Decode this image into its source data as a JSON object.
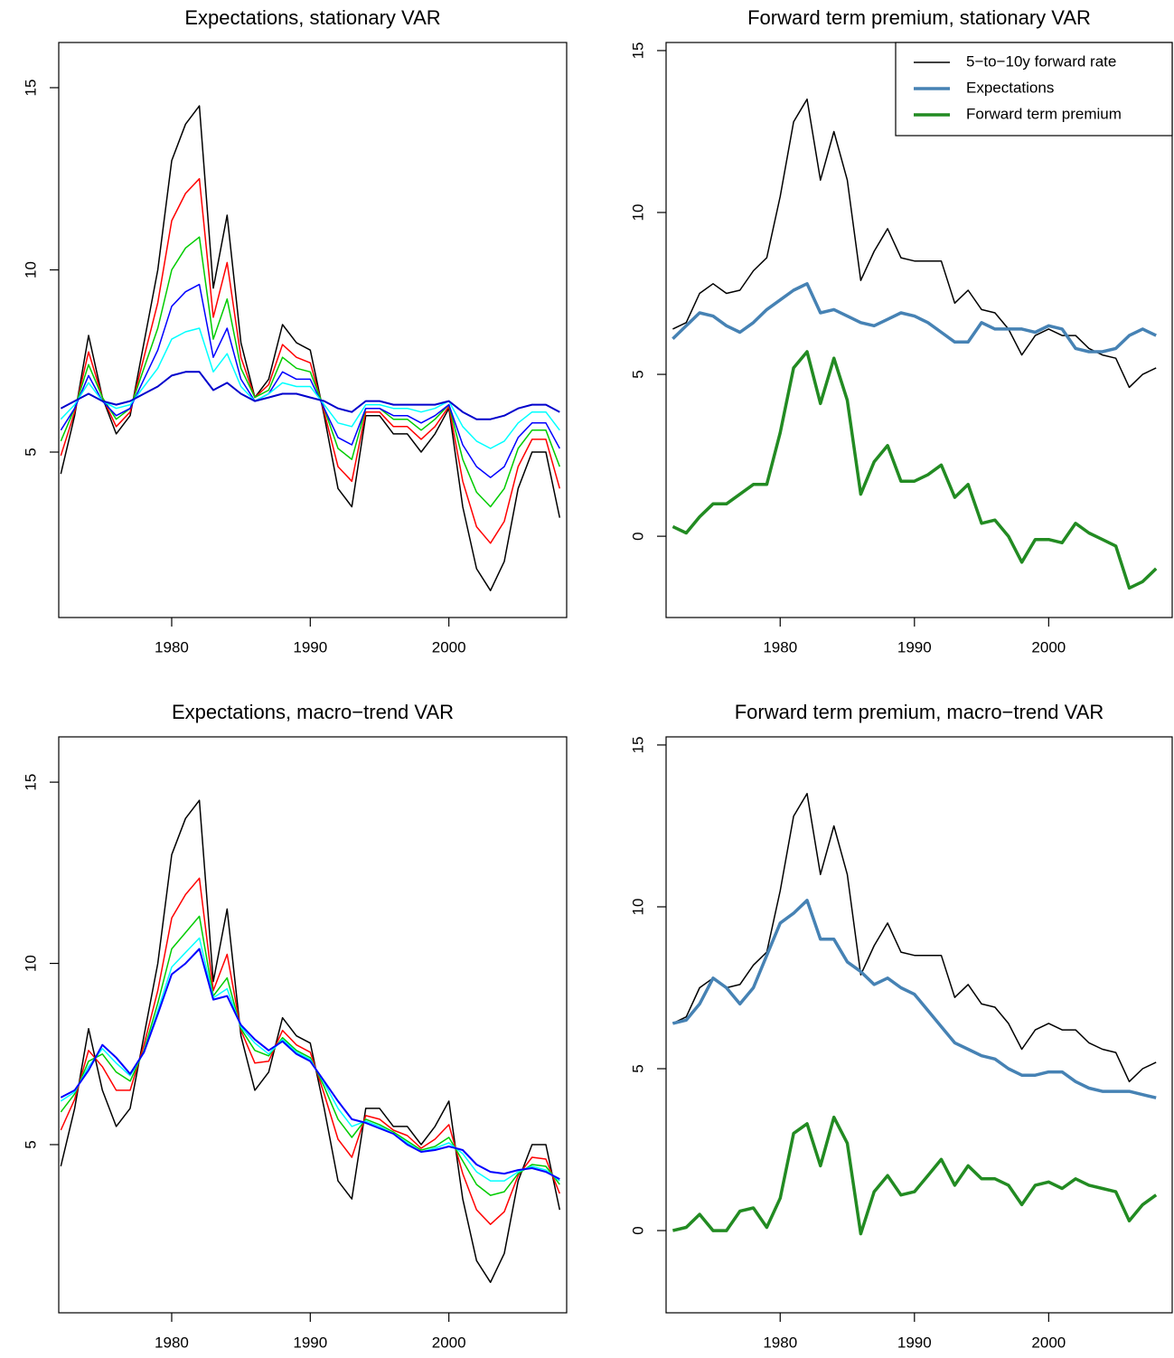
{
  "chart_data": [
    {
      "type": "line",
      "title": "Expectations, stationary VAR",
      "x": [
        1972,
        1973,
        1974,
        1975,
        1976,
        1977,
        1978,
        1979,
        1980,
        1981,
        1982,
        1983,
        1984,
        1985,
        1986,
        1987,
        1988,
        1989,
        1990,
        1991,
        1992,
        1993,
        1994,
        1995,
        1996,
        1997,
        1998,
        1999,
        2000,
        2001,
        2002,
        2003,
        2004,
        2005,
        2006,
        2007,
        2008
      ],
      "xlim": [
        1971.85,
        2008.5
      ],
      "xticks": [
        1980,
        1990,
        2000
      ],
      "ylim": [
        0.46,
        16.24
      ],
      "yticks": [
        5,
        10,
        15
      ],
      "series": [
        {
          "color": "#000000",
          "line_width": 1.5,
          "values": [
            4.4,
            6.0,
            8.2,
            6.5,
            5.5,
            6.0,
            8.0,
            10.0,
            13.0,
            14.0,
            14.5,
            9.5,
            11.5,
            8.0,
            6.5,
            7.0,
            8.5,
            8.0,
            7.8,
            6.0,
            4.0,
            3.5,
            6.0,
            6.0,
            5.5,
            5.5,
            5.0,
            5.5,
            6.2,
            3.5,
            1.8,
            1.2,
            2.0,
            4.0,
            5.0,
            5.0,
            3.2
          ]
        },
        {
          "color": "#ff0000",
          "line_width": 1.5,
          "values": [
            4.9,
            6.1,
            7.75,
            6.5,
            5.7,
            6.1,
            7.6,
            9.1,
            11.35,
            12.1,
            12.5,
            8.7,
            10.2,
            7.6,
            6.5,
            6.85,
            7.95,
            7.6,
            7.45,
            6.1,
            4.6,
            4.2,
            6.1,
            6.1,
            5.7,
            5.7,
            5.35,
            5.7,
            6.25,
            4.2,
            2.95,
            2.5,
            3.1,
            4.6,
            5.35,
            5.35,
            4.0
          ]
        },
        {
          "color": "#00cc00",
          "line_width": 1.5,
          "values": [
            5.3,
            6.2,
            7.4,
            6.5,
            5.9,
            6.2,
            7.3,
            8.4,
            10.0,
            10.6,
            10.9,
            8.1,
            9.2,
            7.3,
            6.5,
            6.7,
            7.6,
            7.3,
            7.2,
            6.2,
            5.1,
            4.8,
            6.2,
            6.2,
            5.9,
            5.9,
            5.6,
            5.9,
            6.3,
            4.8,
            3.9,
            3.5,
            4.0,
            5.1,
            5.6,
            5.6,
            4.6
          ]
        },
        {
          "color": "#0000ff",
          "line_width": 1.5,
          "values": [
            5.6,
            6.2,
            7.1,
            6.4,
            6.0,
            6.2,
            7.0,
            7.8,
            9.0,
            9.4,
            9.6,
            7.6,
            8.4,
            7.0,
            6.4,
            6.6,
            7.2,
            7.0,
            7.0,
            6.2,
            5.4,
            5.2,
            6.2,
            6.2,
            6.0,
            6.0,
            5.8,
            6.0,
            6.3,
            5.2,
            4.6,
            4.3,
            4.6,
            5.4,
            5.8,
            5.8,
            5.1
          ]
        },
        {
          "color": "#00ffff",
          "line_width": 1.5,
          "values": [
            5.9,
            6.3,
            6.9,
            6.4,
            6.2,
            6.3,
            6.8,
            7.3,
            8.1,
            8.3,
            8.4,
            7.2,
            7.7,
            6.8,
            6.4,
            6.6,
            6.9,
            6.8,
            6.8,
            6.3,
            5.8,
            5.7,
            6.3,
            6.3,
            6.2,
            6.2,
            6.1,
            6.2,
            6.4,
            5.7,
            5.3,
            5.1,
            5.3,
            5.8,
            6.1,
            6.1,
            5.6
          ]
        },
        {
          "color": "#0000cc",
          "line_width": 2,
          "values": [
            6.2,
            6.4,
            6.6,
            6.4,
            6.3,
            6.4,
            6.6,
            6.8,
            7.1,
            7.2,
            7.2,
            6.7,
            6.9,
            6.6,
            6.4,
            6.5,
            6.6,
            6.6,
            6.5,
            6.4,
            6.2,
            6.1,
            6.4,
            6.4,
            6.3,
            6.3,
            6.3,
            6.3,
            6.4,
            6.1,
            5.9,
            5.9,
            6.0,
            6.2,
            6.3,
            6.3,
            6.1
          ]
        }
      ]
    },
    {
      "type": "line",
      "title": "Forward term premium, stationary VAR",
      "x": [
        1972,
        1973,
        1974,
        1975,
        1976,
        1977,
        1978,
        1979,
        1980,
        1981,
        1982,
        1983,
        1984,
        1985,
        1986,
        1987,
        1988,
        1989,
        1990,
        1991,
        1992,
        1993,
        1994,
        1995,
        1996,
        1997,
        1998,
        1999,
        2000,
        2001,
        2002,
        2003,
        2004,
        2005,
        2006,
        2007,
        2008
      ],
      "xlim": [
        1971.5,
        2009.2
      ],
      "xticks": [
        1980,
        1990,
        2000
      ],
      "ylim": [
        -2.51,
        15.25
      ],
      "yticks": [
        0,
        5,
        10,
        15
      ],
      "legend": "topright",
      "series": [
        {
          "name": "5−to−10y forward rate",
          "color": "#000000",
          "line_width": 1.5,
          "values": [
            6.4,
            6.6,
            7.5,
            7.8,
            7.5,
            7.6,
            8.2,
            8.6,
            10.5,
            12.8,
            13.5,
            11.0,
            12.5,
            11.0,
            7.9,
            8.8,
            9.5,
            8.6,
            8.5,
            8.5,
            8.5,
            7.2,
            7.6,
            7.0,
            6.9,
            6.4,
            5.6,
            6.2,
            6.4,
            6.2,
            6.2,
            5.8,
            5.6,
            5.5,
            4.6,
            5.0,
            5.2
          ]
        },
        {
          "name": "Expectations",
          "color": "#4682b4",
          "line_width": 3.5,
          "values": [
            6.1,
            6.5,
            6.9,
            6.8,
            6.5,
            6.3,
            6.6,
            7.0,
            7.3,
            7.6,
            7.8,
            6.9,
            7.0,
            6.8,
            6.6,
            6.5,
            6.7,
            6.9,
            6.8,
            6.6,
            6.3,
            6.0,
            6.0,
            6.6,
            6.4,
            6.4,
            6.4,
            6.3,
            6.5,
            6.4,
            5.8,
            5.7,
            5.7,
            5.8,
            6.2,
            6.4,
            6.2
          ]
        },
        {
          "name": "Forward term premium",
          "color": "#228b22",
          "line_width": 3.5,
          "values": [
            0.3,
            0.1,
            0.6,
            1.0,
            1.0,
            1.3,
            1.6,
            1.6,
            3.2,
            5.2,
            5.7,
            4.1,
            5.5,
            4.2,
            1.3,
            2.3,
            2.8,
            1.7,
            1.7,
            1.9,
            2.2,
            1.2,
            1.6,
            0.4,
            0.5,
            0,
            -0.8,
            -0.1,
            -0.1,
            -0.2,
            0.4,
            0.1,
            -0.1,
            -0.3,
            -1.6,
            -1.4,
            -1.0
          ]
        }
      ]
    },
    {
      "type": "line",
      "title": "Expectations, macro−trend VAR",
      "x": [
        1972,
        1973,
        1974,
        1975,
        1976,
        1977,
        1978,
        1979,
        1980,
        1981,
        1982,
        1983,
        1984,
        1985,
        1986,
        1987,
        1988,
        1989,
        1990,
        1991,
        1992,
        1993,
        1994,
        1995,
        1996,
        1997,
        1998,
        1999,
        2000,
        2001,
        2002,
        2003,
        2004,
        2005,
        2006,
        2007,
        2008
      ],
      "xlim": [
        1971.85,
        2008.5
      ],
      "xticks": [
        1980,
        1990,
        2000
      ],
      "ylim": [
        0.36,
        16.25
      ],
      "yticks": [
        5,
        10,
        15
      ],
      "series": [
        {
          "color": "#000000",
          "line_width": 1.5,
          "values": [
            4.4,
            6.0,
            8.2,
            6.5,
            5.5,
            6.0,
            8.0,
            10.0,
            13.0,
            14.0,
            14.5,
            9.5,
            11.5,
            8.0,
            6.5,
            7.0,
            8.5,
            8.0,
            7.8,
            6.0,
            4.0,
            3.5,
            6.0,
            6.0,
            5.5,
            5.5,
            5.0,
            5.5,
            6.2,
            3.5,
            1.8,
            1.2,
            2.0,
            4.0,
            5.0,
            5.0,
            3.2
          ]
        },
        {
          "color": "#ff0000",
          "line_width": 1.5,
          "values": [
            5.4,
            6.25,
            7.6,
            7.15,
            6.5,
            6.5,
            7.75,
            9.25,
            11.25,
            11.9,
            12.35,
            9.25,
            10.25,
            8.15,
            7.25,
            7.3,
            8.15,
            7.75,
            7.55,
            6.4,
            5.15,
            4.65,
            5.8,
            5.7,
            5.4,
            5.25,
            4.9,
            5.15,
            5.55,
            4.2,
            3.2,
            2.8,
            3.15,
            4.15,
            4.65,
            4.6,
            3.65
          ]
        },
        {
          "color": "#00cc00",
          "line_width": 1.5,
          "values": [
            5.9,
            6.4,
            7.3,
            7.5,
            7.0,
            6.75,
            7.6,
            8.9,
            10.4,
            10.85,
            11.3,
            9.1,
            9.6,
            8.2,
            7.6,
            7.45,
            7.95,
            7.6,
            7.4,
            6.6,
            5.7,
            5.2,
            5.7,
            5.55,
            5.35,
            5.1,
            4.85,
            4.95,
            5.2,
            4.55,
            3.9,
            3.6,
            3.7,
            4.2,
            4.45,
            4.4,
            3.9
          ]
        },
        {
          "color": "#00ffff",
          "line_width": 1.5,
          "values": [
            6.2,
            6.45,
            7.15,
            7.65,
            7.25,
            6.9,
            7.55,
            8.7,
            9.9,
            10.3,
            10.7,
            9.05,
            9.3,
            8.25,
            7.8,
            7.5,
            7.9,
            7.55,
            7.35,
            6.7,
            6.0,
            5.5,
            5.65,
            5.5,
            5.3,
            5.05,
            4.8,
            4.9,
            5.05,
            4.75,
            4.25,
            4.0,
            4.0,
            4.25,
            4.4,
            4.3,
            4.0
          ]
        },
        {
          "color": "#0000ff",
          "line_width": 2,
          "values": [
            6.3,
            6.5,
            7.05,
            7.75,
            7.4,
            6.95,
            7.55,
            8.6,
            9.7,
            10.0,
            10.4,
            9.0,
            9.1,
            8.3,
            7.9,
            7.6,
            7.85,
            7.5,
            7.3,
            6.75,
            6.2,
            5.7,
            5.6,
            5.45,
            5.3,
            5.0,
            4.8,
            4.85,
            4.95,
            4.85,
            4.45,
            4.25,
            4.2,
            4.3,
            4.35,
            4.25,
            4.05
          ]
        }
      ]
    },
    {
      "type": "line",
      "title": "Forward term premium, macro−trend VAR",
      "x": [
        1972,
        1973,
        1974,
        1975,
        1976,
        1977,
        1978,
        1979,
        1980,
        1981,
        1982,
        1983,
        1984,
        1985,
        1986,
        1987,
        1988,
        1989,
        1990,
        1991,
        1992,
        1993,
        1994,
        1995,
        1996,
        1997,
        1998,
        1999,
        2000,
        2001,
        2002,
        2003,
        2004,
        2005,
        2006,
        2007,
        2008
      ],
      "xlim": [
        1971.5,
        2009.2
      ],
      "xticks": [
        1980,
        1990,
        2000
      ],
      "ylim": [
        -2.54,
        15.25
      ],
      "yticks": [
        0,
        5,
        10,
        15
      ],
      "series": [
        {
          "color": "#000000",
          "line_width": 1.5,
          "values": [
            6.4,
            6.6,
            7.5,
            7.8,
            7.5,
            7.6,
            8.2,
            8.6,
            10.5,
            12.8,
            13.5,
            11.0,
            12.5,
            11.0,
            7.9,
            8.8,
            9.5,
            8.6,
            8.5,
            8.5,
            8.5,
            7.2,
            7.6,
            7.0,
            6.9,
            6.4,
            5.6,
            6.2,
            6.4,
            6.2,
            6.2,
            5.8,
            5.6,
            5.5,
            4.6,
            5.0,
            5.2
          ]
        },
        {
          "color": "#4682b4",
          "line_width": 3.5,
          "values": [
            6.4,
            6.5,
            7.0,
            7.8,
            7.5,
            7.0,
            7.5,
            8.5,
            9.5,
            9.8,
            10.2,
            9.0,
            9.0,
            8.3,
            8.0,
            7.6,
            7.8,
            7.5,
            7.3,
            6.8,
            6.3,
            5.8,
            5.6,
            5.4,
            5.3,
            5.0,
            4.8,
            4.8,
            4.9,
            4.9,
            4.6,
            4.4,
            4.3,
            4.3,
            4.3,
            4.2,
            4.1
          ]
        },
        {
          "color": "#228b22",
          "line_width": 3.5,
          "values": [
            0,
            0.1,
            0.5,
            0,
            0,
            0.6,
            0.7,
            0.1,
            1.0,
            3.0,
            3.3,
            2.0,
            3.5,
            2.7,
            -0.1,
            1.2,
            1.7,
            1.1,
            1.2,
            1.7,
            2.2,
            1.4,
            2.0,
            1.6,
            1.6,
            1.4,
            0.8,
            1.4,
            1.5,
            1.3,
            1.6,
            1.4,
            1.3,
            1.2,
            0.3,
            0.8,
            1.1
          ]
        }
      ]
    }
  ]
}
